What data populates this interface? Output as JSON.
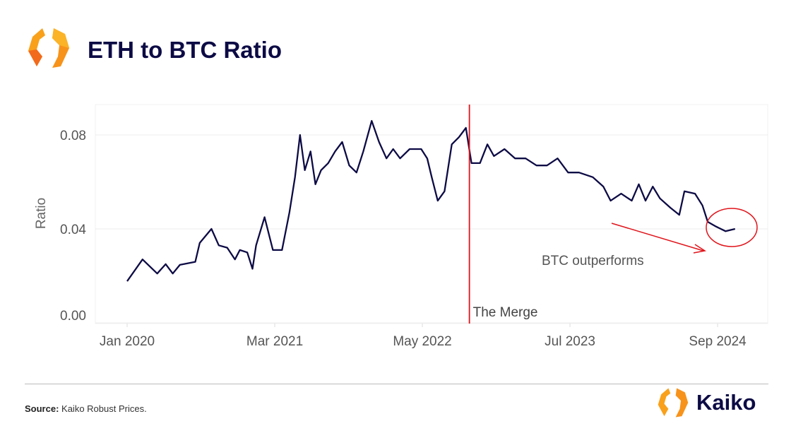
{
  "header": {
    "title": "ETH to BTC Ratio"
  },
  "footer": {
    "source_label": "Source:",
    "source_text": "Kaiko Robust Prices.",
    "brand": "Kaiko"
  },
  "colors": {
    "line": "#0d0b45",
    "annotation": "#e0141b",
    "brand_orange": "#f7931a",
    "title": "#0d0b45"
  },
  "chart_data": {
    "type": "line",
    "title": "",
    "xlabel": "",
    "ylabel": "Ratio",
    "ylim": [
      0,
      0.093
    ],
    "yticks": [
      "0.00",
      "0.04",
      "0.08"
    ],
    "xticks": [
      {
        "date": "2020-01-01",
        "label": "Jan 2020"
      },
      {
        "date": "2021-03-01",
        "label": "Mar 2021"
      },
      {
        "date": "2022-05-01",
        "label": "May 2022"
      },
      {
        "date": "2023-07-01",
        "label": "Jul 2023"
      },
      {
        "date": "2024-09-01",
        "label": "Sep 2024"
      }
    ],
    "grid": true,
    "annotations": {
      "merge_label": "The Merge",
      "merge_date": "2022-09-15",
      "trend_label": "BTC outperforms"
    },
    "series": [
      {
        "x": [
          "2020-01-01",
          "2020-02-15",
          "2020-03-27",
          "2020-04-21",
          "2020-05-11",
          "2020-06-01",
          "2020-07-15",
          "2020-07-28",
          "2020-09-01",
          "2020-09-22",
          "2020-10-16",
          "2020-11-08",
          "2020-11-22",
          "2020-12-13",
          "2020-12-28",
          "2021-01-08",
          "2021-02-02",
          "2021-02-26",
          "2021-03-22",
          "2021-04-13",
          "2021-04-29",
          "2021-05-13",
          "2021-05-27",
          "2021-06-13",
          "2021-06-27",
          "2021-07-13",
          "2021-08-03",
          "2021-08-23",
          "2021-09-13",
          "2021-10-03",
          "2021-10-24",
          "2021-11-13",
          "2021-12-07",
          "2021-12-28",
          "2022-01-19",
          "2022-02-08",
          "2022-02-28",
          "2022-03-25",
          "2022-04-28",
          "2022-05-15",
          "2022-05-28",
          "2022-06-15",
          "2022-07-04",
          "2022-07-25",
          "2022-08-15",
          "2022-09-05",
          "2022-09-21",
          "2022-10-15",
          "2022-11-06",
          "2022-11-25",
          "2022-12-25",
          "2023-01-25",
          "2023-02-25",
          "2023-03-26",
          "2023-04-26",
          "2023-05-26",
          "2023-06-26",
          "2023-07-27",
          "2023-09-06",
          "2023-10-06",
          "2023-10-27",
          "2023-11-27",
          "2023-12-27",
          "2024-01-17",
          "2024-02-06",
          "2024-02-27",
          "2024-03-17",
          "2024-04-17",
          "2024-05-12",
          "2024-05-27",
          "2024-06-27",
          "2024-07-18",
          "2024-08-03",
          "2024-08-27",
          "2024-09-24",
          "2024-10-21"
        ],
        "y": [
          0.0177,
          0.027,
          0.021,
          0.025,
          0.021,
          0.0247,
          0.026,
          0.034,
          0.04,
          0.033,
          0.032,
          0.027,
          0.031,
          0.03,
          0.023,
          0.033,
          0.045,
          0.031,
          0.031,
          0.047,
          0.062,
          0.08,
          0.065,
          0.073,
          0.059,
          0.065,
          0.068,
          0.073,
          0.077,
          0.067,
          0.064,
          0.073,
          0.086,
          0.077,
          0.07,
          0.074,
          0.07,
          0.074,
          0.074,
          0.07,
          0.062,
          0.052,
          0.056,
          0.076,
          0.079,
          0.083,
          0.068,
          0.068,
          0.076,
          0.071,
          0.074,
          0.07,
          0.07,
          0.067,
          0.067,
          0.07,
          0.064,
          0.064,
          0.062,
          0.058,
          0.052,
          0.055,
          0.052,
          0.059,
          0.052,
          0.058,
          0.053,
          0.049,
          0.046,
          0.056,
          0.055,
          0.05,
          0.043,
          0.041,
          0.039,
          0.04
        ]
      }
    ]
  }
}
